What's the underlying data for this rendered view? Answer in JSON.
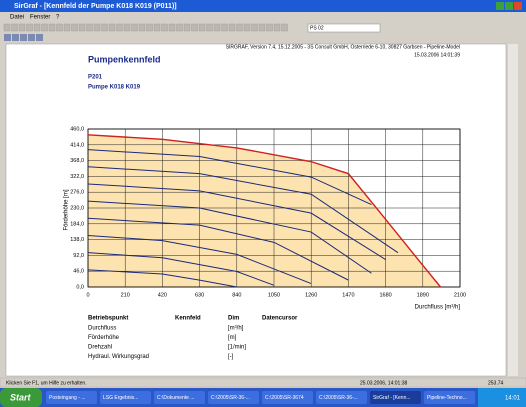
{
  "window": {
    "title": "SirGraf - [Kennfeld der Pumpe K018 K019 (P011)]",
    "menu": [
      "Datei",
      "Fenster",
      "?"
    ],
    "combo": "PS 02"
  },
  "header": {
    "info": "SIRGRAF, Version 7.4, 15.12.2005 - 3S Consult GmbH, Osterriede 6-10, 30827 Garbsen - Pipeline-Model",
    "date": "15.03.2006 14:01:39",
    "title": "Pumpenkennfeld",
    "station": "P201",
    "pump": "Pumpe K018 K019"
  },
  "chart": {
    "type": "line",
    "xlabel": "Durchfluss [m³/h]",
    "ylabel": "Förderhöhe [m]",
    "xlim": [
      0,
      2100
    ],
    "ylim": [
      0,
      460
    ],
    "xticks": [
      0,
      210,
      420,
      630,
      840,
      1050,
      1260,
      1470,
      1680,
      1890,
      2100
    ],
    "yticks": [
      {
        "value": 0,
        "label": "0,0"
      },
      {
        "value": 46,
        "label": "46,0"
      },
      {
        "value": 92,
        "label": "92,0"
      },
      {
        "value": 138,
        "label": "138,0"
      },
      {
        "value": 184,
        "label": "184,0"
      },
      {
        "value": 230,
        "label": "230,0"
      },
      {
        "value": 276,
        "label": "276,0"
      },
      {
        "value": 322,
        "label": "322,0"
      },
      {
        "value": 368,
        "label": "368,0"
      },
      {
        "value": 414,
        "label": "414,0"
      },
      {
        "value": 460,
        "label": "460,0"
      }
    ],
    "grid": true,
    "fill": "#fde3b0",
    "series": [
      {
        "color": "#d02020",
        "x": [
          0,
          420,
          840,
          1260,
          1470,
          1680,
          1890,
          1990
        ],
        "y": [
          443,
          430,
          405,
          365,
          330,
          197,
          63,
          0
        ]
      },
      {
        "color": "#1a2a7a",
        "x": [
          0,
          630,
          1260,
          1600
        ],
        "y": [
          400,
          380,
          320,
          240
        ]
      },
      {
        "color": "#1a2a7a",
        "x": [
          0,
          630,
          1260,
          1750
        ],
        "y": [
          350,
          330,
          270,
          100
        ]
      },
      {
        "color": "#1a2a7a",
        "x": [
          0,
          630,
          1260,
          1680
        ],
        "y": [
          300,
          280,
          215,
          80
        ]
      },
      {
        "color": "#1a2a7a",
        "x": [
          0,
          630,
          1260,
          1600
        ],
        "y": [
          250,
          230,
          160,
          40
        ]
      },
      {
        "color": "#1a2a7a",
        "x": [
          0,
          630,
          1050,
          1470
        ],
        "y": [
          200,
          180,
          130,
          20
        ]
      },
      {
        "color": "#1a2a7a",
        "x": [
          0,
          420,
          840,
          1260
        ],
        "y": [
          150,
          135,
          95,
          10
        ]
      },
      {
        "color": "#1a2a7a",
        "x": [
          0,
          420,
          840,
          1050
        ],
        "y": [
          100,
          85,
          45,
          5
        ]
      },
      {
        "color": "#1a2a7a",
        "x": [
          0,
          420,
          630,
          840
        ],
        "y": [
          50,
          38,
          20,
          0
        ]
      }
    ]
  },
  "table": {
    "header": [
      "Betriebspunkt",
      "Kennfeld",
      "Dim",
      "Datencursor"
    ],
    "rows": [
      [
        "Durchfluss",
        "[m³/h]"
      ],
      [
        "Förderhöhe",
        "[m]"
      ],
      [
        "Drehzahl",
        "[1/min]"
      ],
      [
        "Hydraul. Wirkungsgrad",
        "[-]"
      ]
    ]
  },
  "status": {
    "help": "Klicken Sie F1, um Hilfe zu erhalten.",
    "time": "25.03.2006, 14:01:38",
    "value": "253.74"
  },
  "taskbar": {
    "start": "Start",
    "tasks": [
      "Posteingang - ...",
      "LSG Ergebnis...",
      "C:\\Dokumente ...",
      "C:\\2005\\SR-36-...",
      "C:\\2005\\SR-3674",
      "C:\\2005\\SR-36-...",
      "SirGraf - [Kenn...",
      "Pipeline-Techno..."
    ],
    "clock": "14:01"
  }
}
